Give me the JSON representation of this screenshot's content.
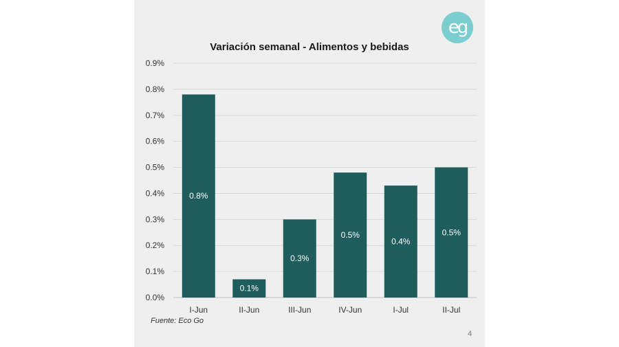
{
  "logo": {
    "text": "eg",
    "color": "#7ccdcf"
  },
  "source": "Fuente: Eco Go",
  "page_number": "4",
  "colors": {
    "bar": "#1f5d5d",
    "label": "#ffffff",
    "grid": "#d6d6d6",
    "axis_text": "#333333"
  },
  "chart_data": {
    "type": "bar",
    "title": "Variación semanal - Alimentos y bebidas",
    "xlabel": "",
    "ylabel": "",
    "categories": [
      "I-Jun",
      "II-Jun",
      "III-Jun",
      "IV-Jun",
      "I-Jul",
      "II-Jul"
    ],
    "values": [
      0.78,
      0.07,
      0.3,
      0.48,
      0.43,
      0.5
    ],
    "data_labels": [
      "0.8%",
      "0.1%",
      "0.3%",
      "0.5%",
      "0.4%",
      "0.5%"
    ],
    "ylim": [
      0,
      0.9
    ],
    "yticks": [
      "0.0%",
      "0.1%",
      "0.2%",
      "0.3%",
      "0.4%",
      "0.5%",
      "0.6%",
      "0.7%",
      "0.8%",
      "0.9%"
    ],
    "grid": true,
    "legend": "none"
  }
}
